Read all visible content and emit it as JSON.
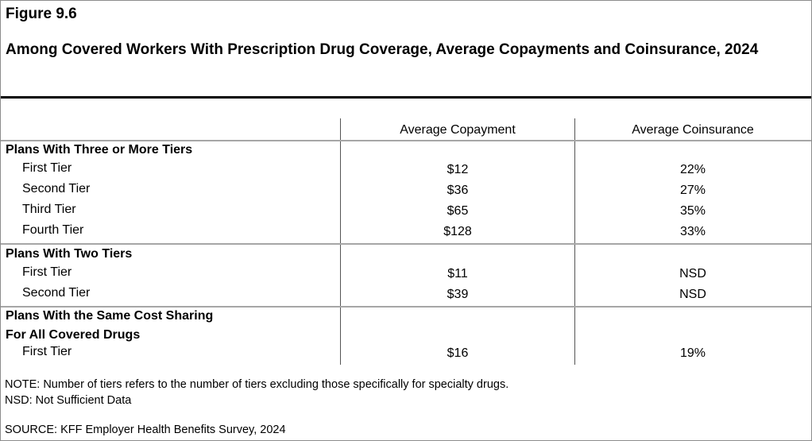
{
  "figure_number": "Figure 9.6",
  "title": "Among Covered Workers With Prescription Drug Coverage, Average Copayments and Coinsurance, 2024",
  "chart_data": {
    "type": "table",
    "columns": [
      "",
      "Average Copayment",
      "Average Coinsurance"
    ],
    "groups": [
      {
        "label": "Plans With Three or More Tiers",
        "label_lines": [
          "Plans With Three or More Tiers"
        ],
        "rows": [
          {
            "label": "First Tier",
            "copayment": "$12",
            "coinsurance": "22%"
          },
          {
            "label": "Second Tier",
            "copayment": "$36",
            "coinsurance": "27%"
          },
          {
            "label": "Third Tier",
            "copayment": "$65",
            "coinsurance": "35%"
          },
          {
            "label": "Fourth Tier",
            "copayment": "$128",
            "coinsurance": "33%"
          }
        ]
      },
      {
        "label": "Plans With Two Tiers",
        "label_lines": [
          "Plans With Two Tiers"
        ],
        "rows": [
          {
            "label": "First Tier",
            "copayment": "$11",
            "coinsurance": "NSD"
          },
          {
            "label": "Second Tier",
            "copayment": "$39",
            "coinsurance": "NSD"
          }
        ]
      },
      {
        "label": "Plans With the Same Cost Sharing For All Covered Drugs",
        "label_lines": [
          "Plans With the Same Cost Sharing",
          "For All Covered Drugs"
        ],
        "rows": [
          {
            "label": "First Tier",
            "copayment": "$16",
            "coinsurance": "19%"
          }
        ]
      }
    ]
  },
  "notes": {
    "note": "NOTE: Number of tiers refers to the number of tiers excluding those specifically for specialty drugs.",
    "nsd": "NSD: Not Sufficient Data",
    "source": "SOURCE: KFF Employer Health Benefits Survey, 2024"
  }
}
